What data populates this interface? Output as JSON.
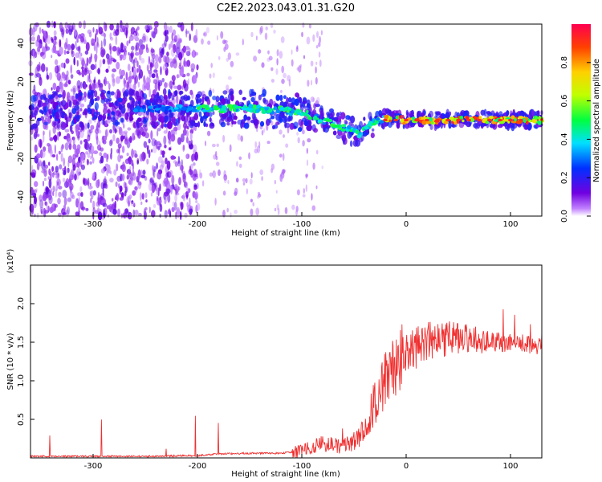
{
  "title": "C2E2.2023.043.01.31.G20",
  "chart_data": [
    {
      "type": "heatmap",
      "xlabel": "Height of straight line (km)",
      "ylabel": "Frequency (Hz)",
      "xlim": [
        -360,
        130
      ],
      "ylim": [
        -50,
        50
      ],
      "xticks": [
        -300,
        -200,
        -100,
        0,
        100
      ],
      "yticks": [
        -40,
        -20,
        0,
        20,
        40
      ],
      "colorbar": {
        "label": "Normalized spectral amplitude",
        "range": [
          0,
          1
        ],
        "ticks": [
          "0.0",
          "0.2",
          "0.4",
          "0.6",
          "0.8"
        ],
        "colormap": "rainbow (purple to red)"
      },
      "dominant_frequency_trace": {
        "x": [
          -360,
          -300,
          -250,
          -200,
          -150,
          -120,
          -100,
          -80,
          -60,
          -45,
          -40,
          -30,
          -20,
          0,
          50,
          100,
          130
        ],
        "y": [
          5,
          6,
          6,
          6,
          6,
          5,
          4,
          0,
          -4,
          -7,
          -5,
          -1,
          1,
          0,
          0,
          0,
          0
        ]
      },
      "colors": {
        "low": "#6000c0",
        "mid": "#00e0ff",
        "high": "#ff2020"
      }
    },
    {
      "type": "line",
      "xlabel": "Height of straight line (km)",
      "ylabel": "SNR (10 * v/v)",
      "ymultiplier": "(x10⁴)",
      "xlim": [
        -360,
        130
      ],
      "ylim": [
        0,
        2.5
      ],
      "xticks": [
        -300,
        -200,
        -100,
        0,
        100
      ],
      "yticks": [
        "0.5",
        "1.0",
        "1.5",
        "2.0"
      ],
      "series": [
        {
          "color": "#f03030",
          "x": [
            -360,
            -300,
            -250,
            -200,
            -180,
            -150,
            -120,
            -100,
            -80,
            -60,
            -50,
            -40,
            -30,
            -20,
            -10,
            0,
            20,
            40,
            60,
            80,
            100,
            130
          ],
          "y": [
            0.02,
            0.02,
            0.02,
            0.03,
            0.05,
            0.06,
            0.06,
            0.09,
            0.18,
            0.15,
            0.22,
            0.35,
            0.75,
            1.0,
            1.2,
            1.35,
            1.5,
            1.55,
            1.55,
            1.5,
            1.5,
            1.45
          ]
        }
      ]
    }
  ]
}
